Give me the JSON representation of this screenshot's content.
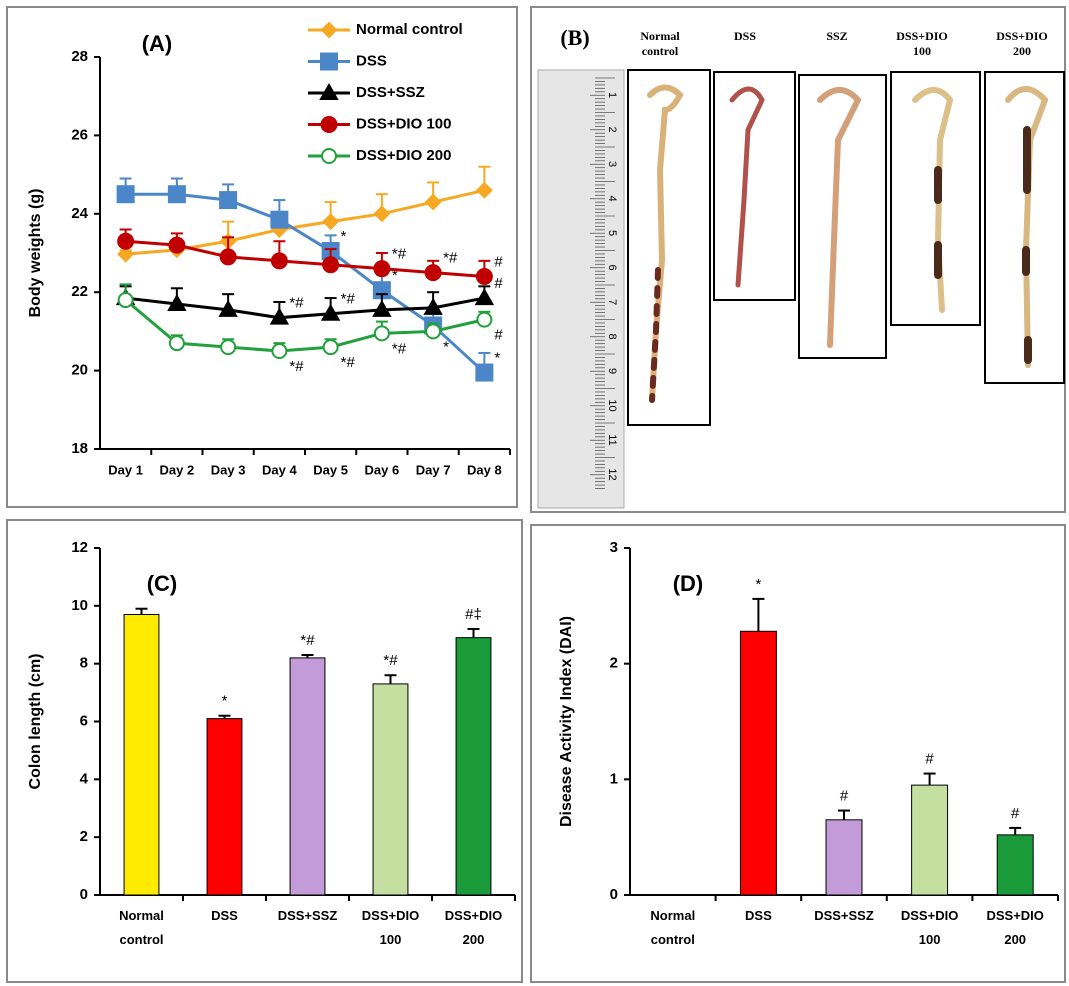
{
  "chart_data": [
    {
      "type": "line",
      "title": "(A)",
      "y_label": "Body weights (g)",
      "categories": [
        "Day 1",
        "Day 2",
        "Day 3",
        "Day 4",
        "Day 5",
        "Day 6",
        "Day 7",
        "Day 8"
      ],
      "ylim": [
        18,
        28
      ],
      "yticks": [
        18,
        20,
        22,
        24,
        26,
        28
      ],
      "series": [
        {
          "name": "Normal control",
          "color": "#f7a823",
          "marker": "diamond",
          "values": [
            22.97,
            23.08,
            23.3,
            23.6,
            23.8,
            24.0,
            24.3,
            24.6
          ],
          "errors": [
            0.1,
            0.2,
            0.5,
            0.4,
            0.5,
            0.5,
            0.5,
            0.6
          ],
          "annotations": [
            null,
            null,
            null,
            null,
            null,
            null,
            null,
            null
          ]
        },
        {
          "name": "DSS",
          "color": "#4a86c8",
          "marker": "square",
          "values": [
            24.5,
            24.5,
            24.35,
            23.85,
            23.05,
            22.05,
            21.15,
            19.95
          ],
          "errors": [
            0.4,
            0.4,
            0.4,
            0.5,
            0.4,
            0.4,
            0.3,
            0.5
          ],
          "annotations": [
            null,
            null,
            null,
            null,
            "*",
            "*",
            null,
            "*"
          ]
        },
        {
          "name": "DSS+SSZ",
          "color": "#000000",
          "marker": "triangle",
          "values": [
            21.85,
            21.7,
            21.55,
            21.35,
            21.45,
            21.55,
            21.6,
            21.85
          ],
          "errors": [
            0.3,
            0.4,
            0.4,
            0.4,
            0.4,
            0.4,
            0.4,
            0.3
          ],
          "annotations": [
            null,
            null,
            null,
            "*#",
            "*#",
            null,
            null,
            "#"
          ]
        },
        {
          "name": "DSS+DIO 100",
          "color": "#c00000",
          "marker": "circle",
          "values": [
            23.3,
            23.2,
            22.9,
            22.8,
            22.7,
            22.6,
            22.5,
            22.4
          ],
          "errors": [
            0.3,
            0.3,
            0.5,
            0.5,
            0.4,
            0.4,
            0.3,
            0.4
          ],
          "annotations": [
            null,
            null,
            null,
            null,
            null,
            "*#",
            "*#",
            "#"
          ]
        },
        {
          "name": "DSS+DIO 200",
          "color": "#22a03c",
          "marker": "open-circle",
          "values": [
            21.8,
            20.7,
            20.6,
            20.5,
            20.6,
            20.95,
            21.0,
            21.3
          ],
          "errors": [
            0.4,
            0.2,
            0.2,
            0.2,
            0.2,
            0.3,
            0.2,
            0.2
          ],
          "annotations": [
            null,
            null,
            null,
            "*#",
            "*#",
            "*#",
            "*",
            "#"
          ]
        }
      ]
    },
    {
      "type": "image",
      "title": "(B)",
      "labels": [
        "Normal control",
        "DSS",
        "SSZ",
        "DSS+DIO 100",
        "DSS+DIO 200"
      ],
      "ruler_labels": [
        1,
        2,
        3,
        4,
        5,
        6,
        7,
        8,
        9,
        10,
        11,
        12
      ]
    },
    {
      "type": "bar",
      "title": "(C)",
      "y_label": "Colon length (cm)",
      "categories": [
        "Normal control",
        "DSS",
        "DSS+SSZ",
        "DSS+DIO 100",
        "DSS+DIO 200"
      ],
      "values": [
        9.7,
        6.1,
        8.2,
        7.3,
        8.9
      ],
      "errors": [
        0.2,
        0.1,
        0.1,
        0.3,
        0.3
      ],
      "annotations": [
        null,
        "*",
        "*#",
        "*#",
        "#‡"
      ],
      "colors": [
        "#ffeb00",
        "#ff0000",
        "#c39bd8",
        "#c5dfa0",
        "#1b9a3a"
      ],
      "ylim": [
        0,
        12
      ],
      "yticks": [
        0,
        2,
        4,
        6,
        8,
        10,
        12
      ]
    },
    {
      "type": "bar",
      "title": "(D)",
      "y_label": "Disease Activity Index (DAI)",
      "categories": [
        "Normal control",
        "DSS",
        "DSS+SSZ",
        "DSS+DIO 100",
        "DSS+DIO 200"
      ],
      "values": [
        0,
        2.28,
        0.65,
        0.95,
        0.52
      ],
      "errors": [
        null,
        0.28,
        0.08,
        0.1,
        0.06
      ],
      "annotations": [
        null,
        "*",
        "#",
        "#",
        "#"
      ],
      "colors": [
        "#ffeb00",
        "#ff0000",
        "#c39bd8",
        "#c5dfa0",
        "#1b9a3a"
      ],
      "ylim": [
        0,
        3
      ],
      "yticks": [
        0,
        1,
        2,
        3
      ]
    }
  ]
}
